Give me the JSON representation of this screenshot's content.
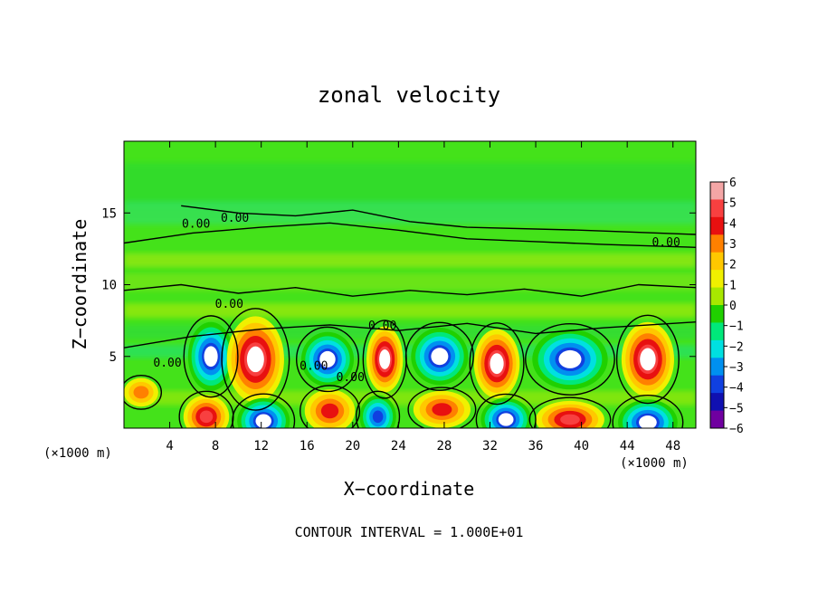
{
  "chart_data": {
    "type": "heatmap",
    "title": "zonal velocity",
    "xlabel": "X−coordinate",
    "ylabel": "Z−coordinate",
    "x_unit_left": "(×1000 m)",
    "x_unit_right": "(×1000 m)",
    "xlim": [
      0,
      50
    ],
    "ylim": [
      0,
      20
    ],
    "x_ticks": [
      4,
      8,
      12,
      16,
      20,
      24,
      28,
      32,
      36,
      40,
      44,
      48
    ],
    "y_ticks": [
      5,
      10,
      15
    ],
    "footer": "CONTOUR INTERVAL = 1.000E+01",
    "colorbar": {
      "ticks": [
        "6",
        "5",
        "4",
        "3",
        "2",
        "1",
        "0",
        "−1",
        "−2",
        "−3",
        "−4",
        "−5",
        "−6"
      ],
      "levels": [
        6,
        5,
        4,
        3,
        2,
        1,
        0,
        -1,
        -2,
        -3,
        -4,
        -5,
        -6
      ],
      "colors": [
        "#f4a6a6",
        "#f84040",
        "#e81010",
        "#ff8000",
        "#ffc800",
        "#f0f000",
        "#a8e800",
        "#20d000",
        "#00e87a",
        "#00e0e0",
        "#0090f0",
        "#1040e0",
        "#1010b0",
        "#7000a0"
      ]
    },
    "contour_labels": [
      {
        "text": "0.00",
        "x": 6.3,
        "z": 14.2
      },
      {
        "text": "0.00",
        "x": 9.7,
        "z": 14.6
      },
      {
        "text": "0.00",
        "x": 47.4,
        "z": 12.9
      },
      {
        "text": "0.00",
        "x": 9.2,
        "z": 8.6
      },
      {
        "text": "0.00",
        "x": 22.6,
        "z": 7.1
      },
      {
        "text": "0.00",
        "x": 3.8,
        "z": 4.5
      },
      {
        "text": "0.00",
        "x": 16.6,
        "z": 4.3
      },
      {
        "text": "0.00",
        "x": 19.8,
        "z": 3.5
      }
    ],
    "anomalies": [
      {
        "x": 7.6,
        "z": 5.0,
        "value": -6,
        "rx": 2.0,
        "rz": 2.4
      },
      {
        "x": 11.5,
        "z": 4.8,
        "value": 6,
        "rx": 2.5,
        "rz": 3.0
      },
      {
        "x": 17.8,
        "z": 4.8,
        "value": -6,
        "rx": 2.3,
        "rz": 1.9
      },
      {
        "x": 22.8,
        "z": 4.8,
        "value": 6,
        "rx": 1.6,
        "rz": 2.3
      },
      {
        "x": 27.6,
        "z": 5.0,
        "value": -6,
        "rx": 2.5,
        "rz": 2.0
      },
      {
        "x": 32.6,
        "z": 4.5,
        "value": 6,
        "rx": 2.0,
        "rz": 2.4
      },
      {
        "x": 39.0,
        "z": 4.8,
        "value": -6,
        "rx": 3.3,
        "rz": 2.1
      },
      {
        "x": 45.8,
        "z": 4.8,
        "value": 6,
        "rx": 2.3,
        "rz": 2.6
      },
      {
        "x": 7.2,
        "z": 0.8,
        "value": 5,
        "rx": 2.0,
        "rz": 1.5
      },
      {
        "x": 12.2,
        "z": 0.5,
        "value": -6,
        "rx": 2.3,
        "rz": 1.6
      },
      {
        "x": 18.0,
        "z": 1.2,
        "value": 4,
        "rx": 2.2,
        "rz": 1.5
      },
      {
        "x": 22.2,
        "z": 0.8,
        "value": -5,
        "rx": 1.6,
        "rz": 1.5
      },
      {
        "x": 27.8,
        "z": 1.3,
        "value": 4,
        "rx": 2.5,
        "rz": 1.3
      },
      {
        "x": 33.4,
        "z": 0.6,
        "value": -6,
        "rx": 2.2,
        "rz": 1.5
      },
      {
        "x": 39.0,
        "z": 0.6,
        "value": 5,
        "rx": 3.0,
        "rz": 1.3
      },
      {
        "x": 45.8,
        "z": 0.4,
        "value": -6,
        "rx": 2.6,
        "rz": 1.6
      },
      {
        "x": 1.5,
        "z": 2.5,
        "value": 3,
        "rx": 1.5,
        "rz": 1.0
      }
    ]
  }
}
